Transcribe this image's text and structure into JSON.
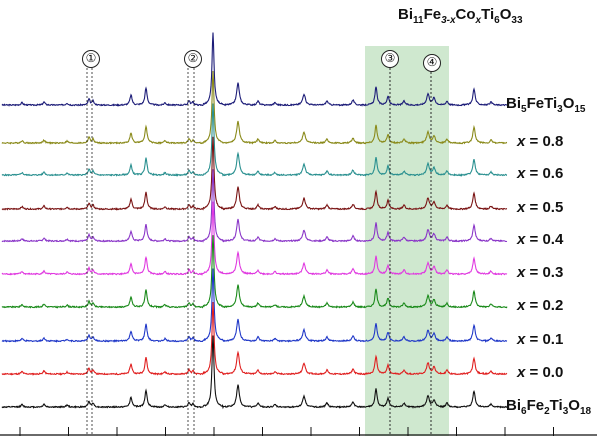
{
  "chart_data": {
    "type": "line",
    "title": {
      "base": "Bi",
      "s1": "11",
      "m1": "Fe",
      "s2": "3-x",
      "m2": "Co",
      "s3": "x",
      "m3": "Ti",
      "s4": "6",
      "m4": "O",
      "s5": "33"
    },
    "markers": [
      "①",
      "②",
      "③",
      "④"
    ],
    "series": [
      {
        "name": "Bi5FeTi3O15",
        "label": "Bi5FeTi3O15",
        "color": "#1c1c78"
      },
      {
        "name": "x = 0.8",
        "label": "x = 0.8",
        "color": "#8a8a1a"
      },
      {
        "name": "x = 0.6",
        "label": "x = 0.6",
        "color": "#2a9090"
      },
      {
        "name": "x = 0.5",
        "label": "x = 0.5",
        "color": "#7a1414"
      },
      {
        "name": "x = 0.4",
        "label": "x = 0.4",
        "color": "#8a36c8"
      },
      {
        "name": "x = 0.3",
        "label": "x = 0.3",
        "color": "#e03ae0"
      },
      {
        "name": "x = 0.2",
        "label": "x = 0.2",
        "color": "#1a8a1a"
      },
      {
        "name": "x = 0.1",
        "label": "x = 0.1",
        "color": "#2038c8"
      },
      {
        "name": "x = 0.0",
        "label": "x = 0.0",
        "color": "#e02020"
      },
      {
        "name": "Bi6Fe2Ti3O18",
        "label": "Bi6Fe2Ti3O18",
        "color": "#111111"
      }
    ],
    "grid": false,
    "highlight_color": "#cfe8cf"
  }
}
